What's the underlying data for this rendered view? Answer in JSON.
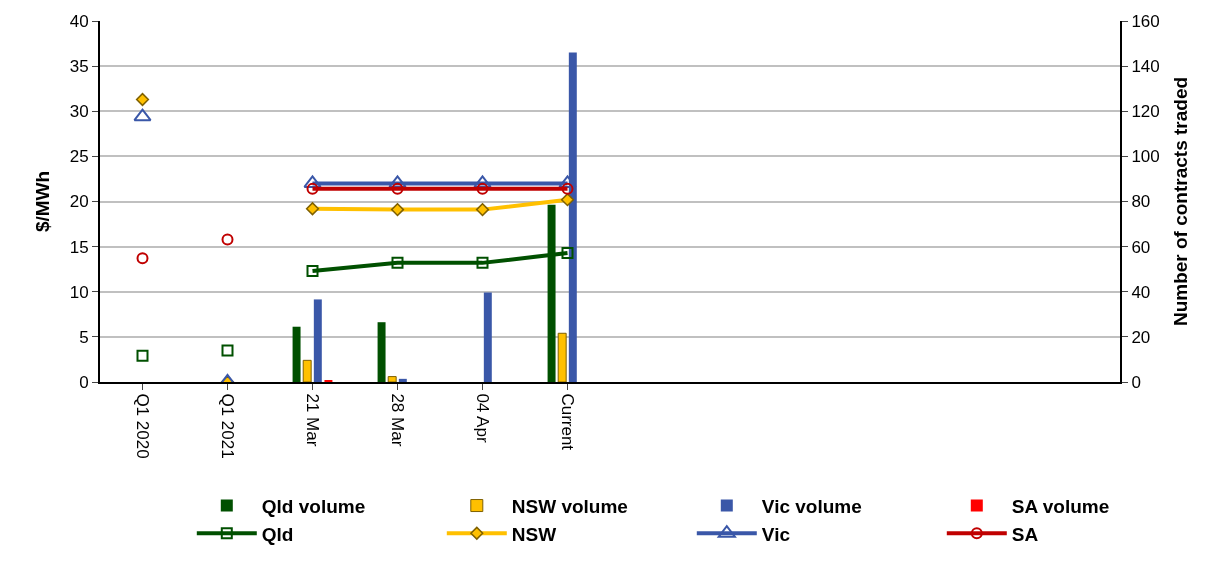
{
  "chart_data": {
    "type": "bar",
    "categories": [
      "Q1 2020",
      "Q1 2021",
      "21 Mar",
      "28 Mar",
      "04 Apr",
      "Current",
      null,
      null,
      null,
      null,
      null,
      null
    ],
    "ylabel": "$/MWh",
    "y2label": "Number of contracts traded",
    "ylim": [
      0,
      40
    ],
    "yticks": [
      0,
      5,
      10,
      15,
      20,
      25,
      30,
      35,
      40
    ],
    "y2lim": [
      0,
      160
    ],
    "y2ticks": [
      0,
      20,
      40,
      60,
      80,
      100,
      120,
      140,
      160
    ],
    "grid": "y",
    "legend": "bottom",
    "series": [
      {
        "name": "Qld volume",
        "axis": "y2",
        "color": "#005000",
        "values": [
          null,
          null,
          24.5,
          26.5,
          null,
          78.6,
          null,
          null,
          null,
          null,
          null,
          null
        ]
      },
      {
        "name": "NSW volume",
        "axis": "y2",
        "color": "#ffc000",
        "values": [
          null,
          null,
          9.6,
          2.4,
          null,
          21.6,
          null,
          null,
          null,
          null,
          null,
          null
        ]
      },
      {
        "name": "Vic volume",
        "axis": "y2",
        "color": "#3a57a8",
        "values": [
          null,
          null,
          36.6,
          1.4,
          39.7,
          146,
          null,
          null,
          null,
          null,
          null,
          null
        ]
      },
      {
        "name": "SA volume",
        "axis": "y2",
        "color": "#ff0000",
        "values": [
          null,
          null,
          0.5,
          null,
          null,
          null,
          null,
          null,
          null,
          null,
          null,
          null
        ]
      },
      {
        "name": "Qld",
        "type": "line",
        "marker": "square",
        "color": "#005000",
        "values": [
          null,
          null,
          12.3,
          13.2,
          13.2,
          14.3,
          null,
          null,
          null,
          null,
          null,
          null
        ]
      },
      {
        "name": "NSW",
        "type": "line",
        "marker": "diamond",
        "color": "#ffc000",
        "values": [
          null,
          null,
          19.2,
          19.1,
          19.1,
          20.2,
          null,
          null,
          null,
          null,
          null,
          null
        ]
      },
      {
        "name": "Vic",
        "type": "line",
        "marker": "triangle",
        "color": "#3a57a8",
        "values": [
          null,
          null,
          22.0,
          22.0,
          22.0,
          22.0,
          null,
          null,
          null,
          null,
          null,
          null
        ]
      },
      {
        "name": "SA",
        "type": "line",
        "marker": "circle",
        "color": "#c00000",
        "values": [
          null,
          null,
          21.4,
          21.4,
          21.4,
          21.4,
          null,
          null,
          null,
          null,
          null,
          null
        ]
      },
      {
        "type": "scatter",
        "marker": "square",
        "color": "#005000",
        "values": [
          2.9,
          3.5,
          null,
          null,
          null,
          null,
          null,
          null,
          null,
          null,
          null,
          null
        ]
      },
      {
        "type": "scatter",
        "marker": "diamond",
        "color": "#ffc000",
        "values": [
          31.3,
          0,
          null,
          null,
          null,
          null,
          null,
          null,
          null,
          null,
          null,
          null
        ]
      },
      {
        "type": "scatter",
        "marker": "triangle",
        "color": "#3a57a8",
        "values": [
          29.4,
          0,
          null,
          null,
          null,
          null,
          null,
          null,
          null,
          null,
          null,
          null
        ]
      },
      {
        "type": "scatter",
        "marker": "circle",
        "color": "#c00000",
        "values": [
          13.7,
          15.8,
          null,
          null,
          null,
          null,
          null,
          null,
          null,
          null,
          null,
          null
        ]
      }
    ]
  }
}
